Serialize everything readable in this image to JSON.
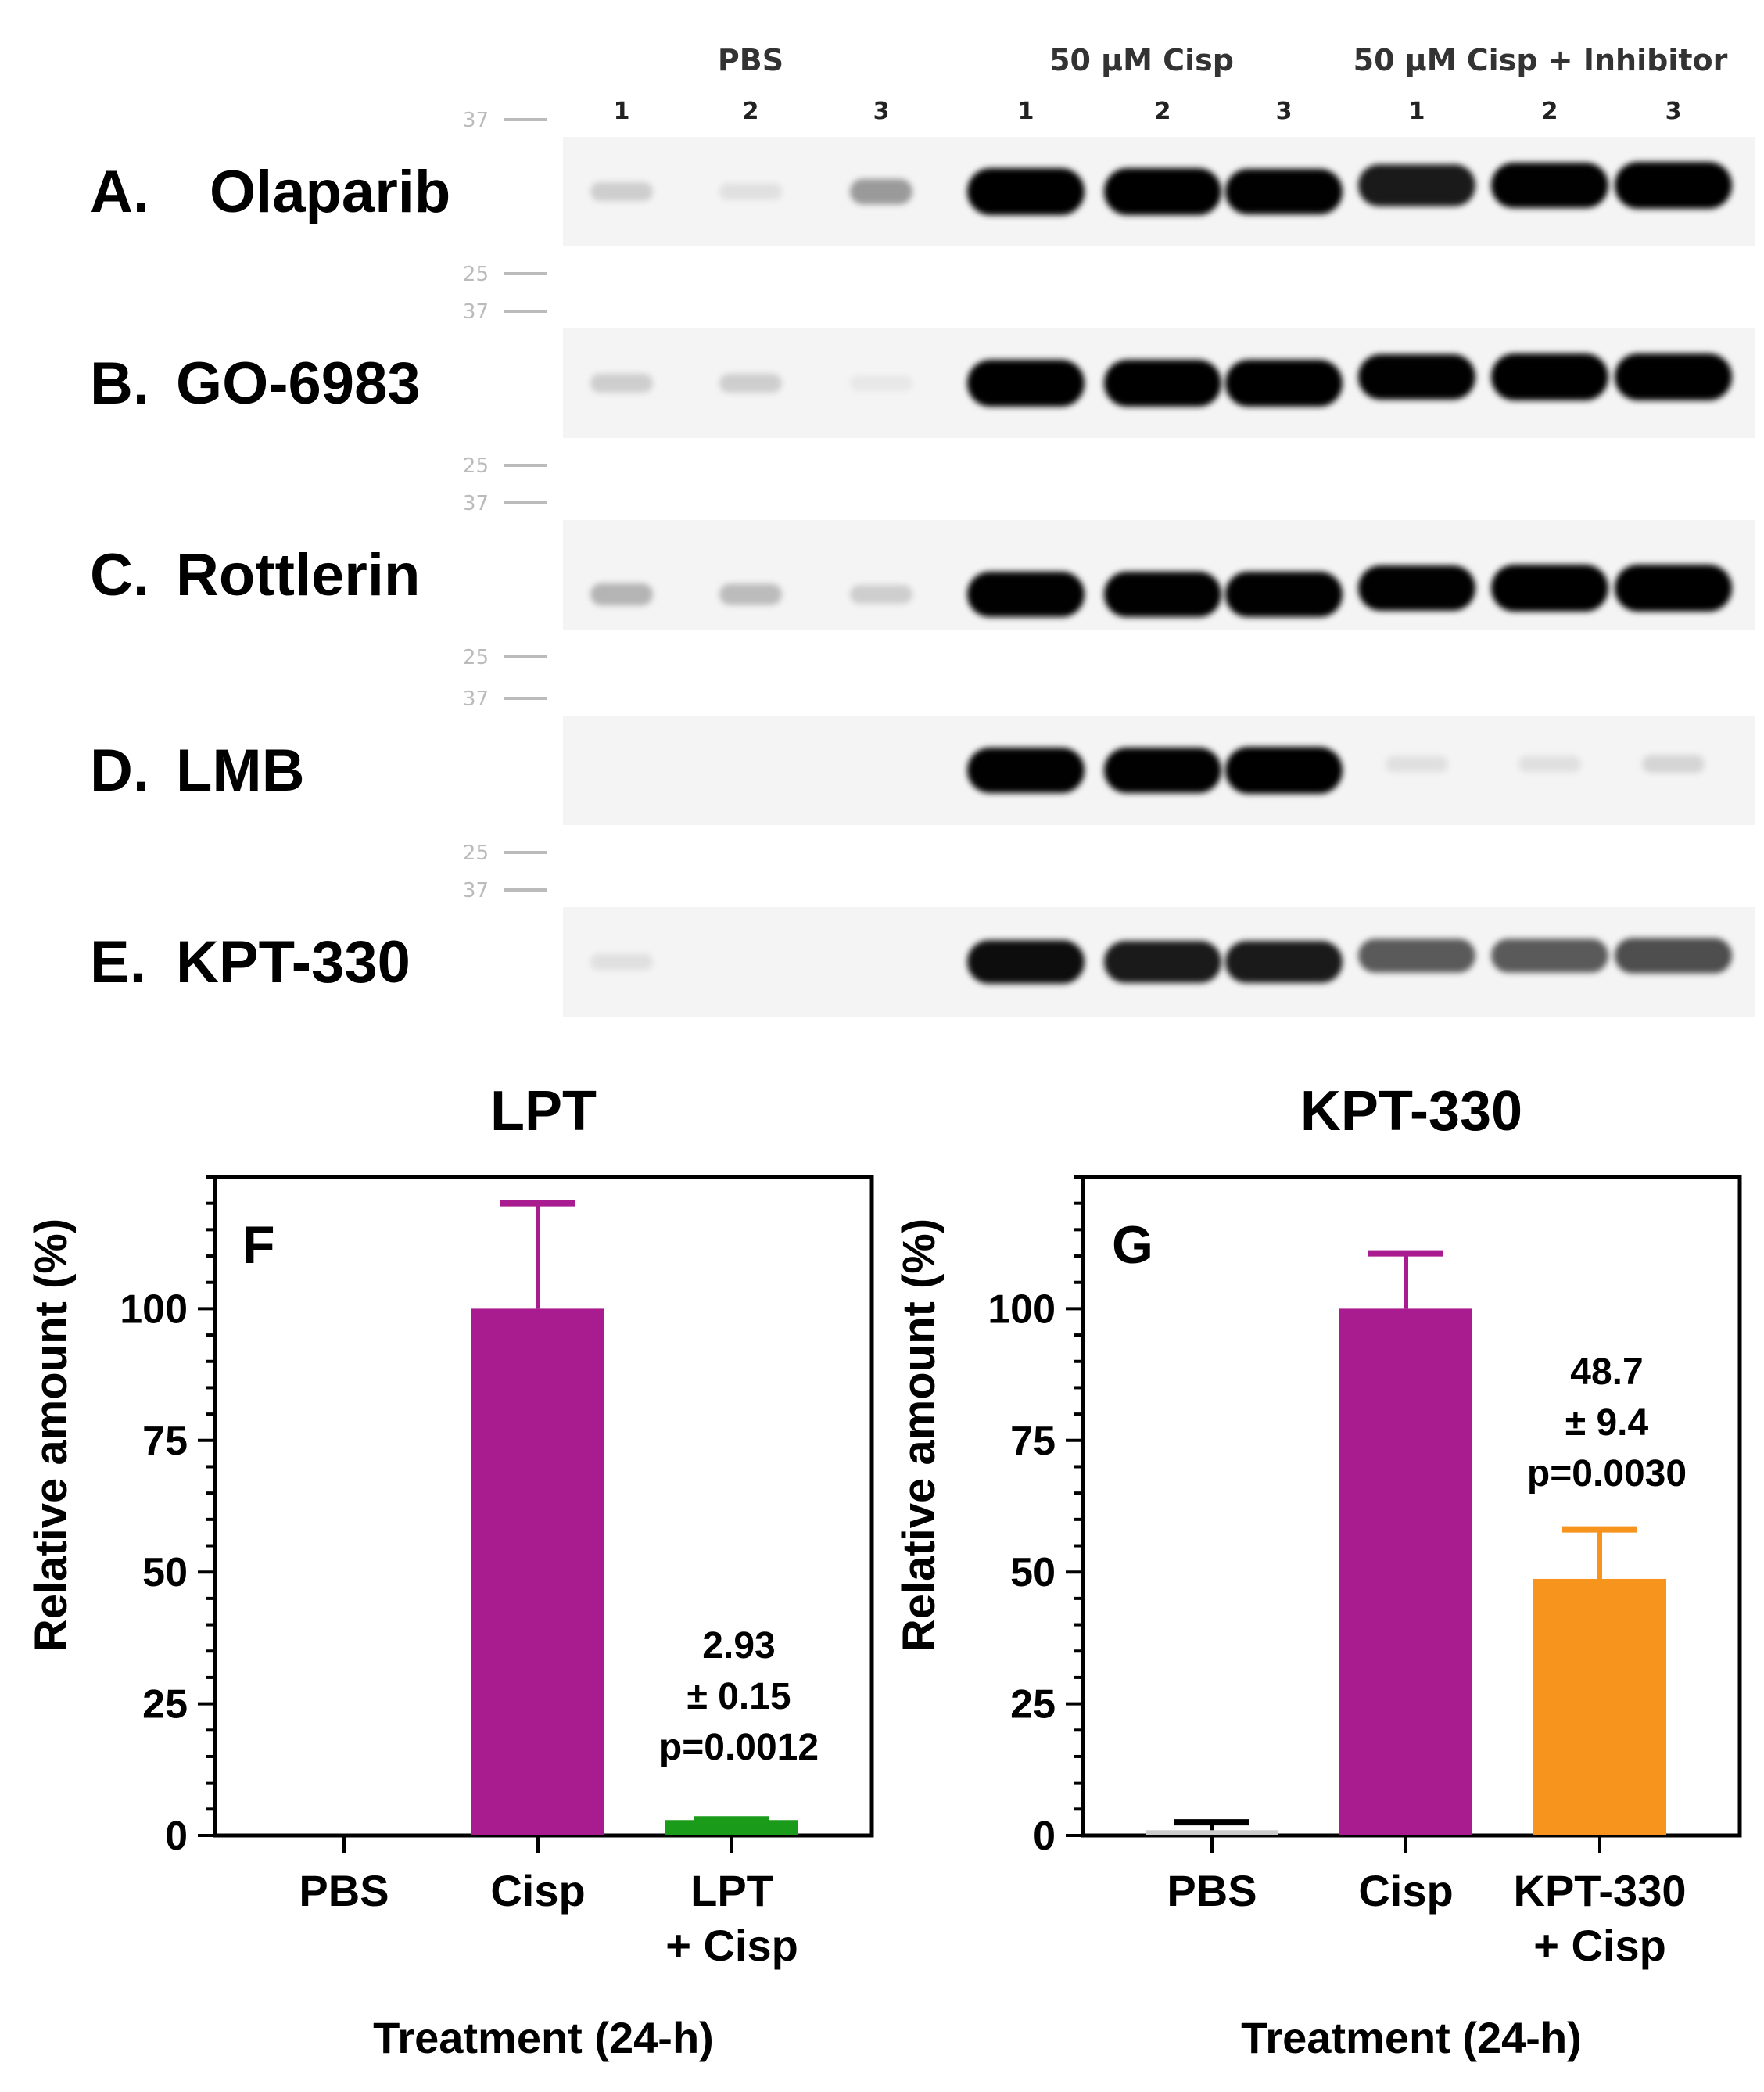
{
  "blot": {
    "headers": [
      "PBS",
      "50 µM Cisp",
      "50 µM Cisp + Inhibitor"
    ],
    "lane_labels": [
      "1",
      "2",
      "3",
      "1",
      "2",
      "3",
      "1",
      "2",
      "3"
    ],
    "mw_markers": [
      "37",
      "25"
    ],
    "rows": [
      {
        "label": "A.",
        "name": "Olaparib",
        "intensity": [
          0.15,
          0.08,
          0.35,
          1,
          1,
          0.95,
          0.85,
          0.95,
          1
        ]
      },
      {
        "label": "B.",
        "name": "GO-6983",
        "intensity": [
          0.15,
          0.15,
          0.05,
          1,
          1,
          1,
          0.95,
          1,
          1
        ]
      },
      {
        "label": "C.",
        "name": "Rottlerin",
        "intensity": [
          0.25,
          0.22,
          0.15,
          0.95,
          0.95,
          0.95,
          0.95,
          1,
          1
        ]
      },
      {
        "label": "D.",
        "name": "LMB",
        "intensity": [
          0,
          0,
          0,
          0.95,
          0.95,
          1,
          0.08,
          0.08,
          0.12
        ]
      },
      {
        "label": "E.",
        "name": "KPT-330",
        "intensity": [
          0.08,
          0,
          0,
          0.9,
          0.85,
          0.85,
          0.6,
          0.6,
          0.65
        ]
      }
    ]
  },
  "chart_data": [
    {
      "type": "bar",
      "title": "LPT",
      "panel_label": "F",
      "categories": [
        "PBS",
        "Cisp",
        "LPT + Cisp"
      ],
      "category_lines": [
        [
          "PBS"
        ],
        [
          "Cisp"
        ],
        [
          "LPT",
          "+ Cisp"
        ]
      ],
      "values": [
        0,
        100,
        2.93
      ],
      "errors": [
        0,
        20,
        0.15
      ],
      "colors": [
        "#ffffff",
        "#a81c8f",
        "#1a9c1a"
      ],
      "annotation": [
        "2.93",
        "± 0.15",
        "p=0.0012"
      ],
      "ylabel": "Relative amount (%)",
      "xlabel": "Treatment (24-h)",
      "ylim": [
        0,
        125
      ],
      "yticks": [
        0,
        25,
        50,
        75,
        100
      ]
    },
    {
      "type": "bar",
      "title": "KPT-330",
      "panel_label": "G",
      "categories": [
        "PBS",
        "Cisp",
        "KPT-330 + Cisp"
      ],
      "category_lines": [
        [
          "PBS"
        ],
        [
          "Cisp"
        ],
        [
          "KPT-330",
          "+ Cisp"
        ]
      ],
      "values": [
        1,
        100,
        48.7
      ],
      "errors": [
        1.5,
        10.5,
        9.4
      ],
      "colors": [
        "#cccccc",
        "#a81c8f",
        "#f7941d"
      ],
      "annotation": [
        "48.7",
        "± 9.4",
        "p=0.0030"
      ],
      "ylabel": "Relative amount (%)",
      "xlabel": "Treatment (24-h)",
      "ylim": [
        0,
        125
      ],
      "yticks": [
        0,
        25,
        50,
        75,
        100
      ]
    }
  ]
}
